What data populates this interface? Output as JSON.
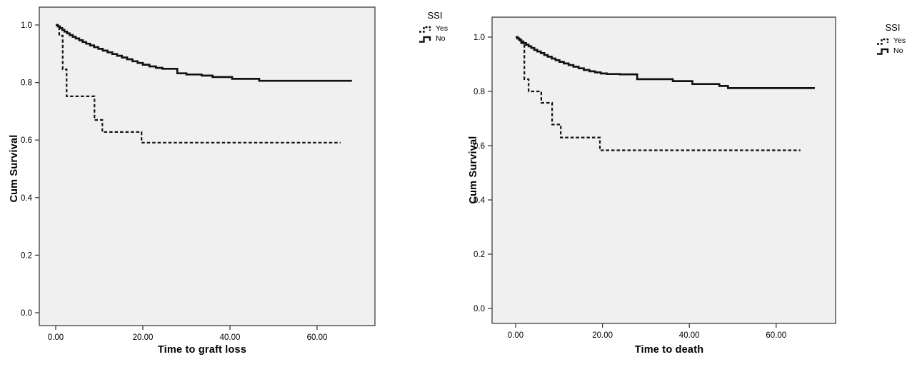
{
  "figure": {
    "background": "#ffffff"
  },
  "chart_data": [
    {
      "name": "time-to-graft-loss",
      "type": "line",
      "subtype": "kaplan-meier-step",
      "title": "",
      "xlabel": "Time to graft loss",
      "ylabel": "Cum Survival",
      "x_tick_labels": [
        "0.00",
        "20.00",
        "40.00",
        "60.00"
      ],
      "x_tick_values": [
        0,
        20,
        40,
        60
      ],
      "y_tick_labels": [
        "1.0",
        "0.8",
        "0.6",
        "0.4",
        "0.2",
        "0.0"
      ],
      "y_tick_values": [
        1.0,
        0.8,
        0.6,
        0.4,
        0.2,
        0.0
      ],
      "xlim": [
        -3.8,
        73.3
      ],
      "ylim": [
        -0.05,
        1.06
      ],
      "grid": false,
      "plot_background": "#f0f0f0",
      "frame_color": "#3d3d3d",
      "curve_color": "#121212",
      "legend": {
        "title": "SSI",
        "position": "outside-top-right",
        "items": [
          {
            "label": "Yes",
            "line_style": "dashed"
          },
          {
            "label": "No",
            "line_style": "solid"
          }
        ]
      },
      "series": [
        {
          "name": "Yes",
          "line_style": "dashed",
          "points": [
            [
              0,
              1.0
            ],
            [
              0.8,
              0.963
            ],
            [
              1.6,
              0.846
            ],
            [
              2.5,
              0.752
            ],
            [
              8.9,
              0.67
            ],
            [
              10.7,
              0.628
            ],
            [
              19.7,
              0.591
            ],
            [
              65.4,
              0.591
            ]
          ]
        },
        {
          "name": "No",
          "line_style": "solid",
          "points": [
            [
              0,
              1.0
            ],
            [
              0.5,
              0.995
            ],
            [
              1,
              0.989
            ],
            [
              1.5,
              0.983
            ],
            [
              2,
              0.977
            ],
            [
              2.6,
              0.971
            ],
            [
              3.2,
              0.965
            ],
            [
              3.9,
              0.959
            ],
            [
              4.6,
              0.953
            ],
            [
              5.4,
              0.947
            ],
            [
              6.2,
              0.941
            ],
            [
              7,
              0.935
            ],
            [
              7.9,
              0.929
            ],
            [
              8.8,
              0.923
            ],
            [
              9.8,
              0.917
            ],
            [
              10.8,
              0.911
            ],
            [
              11.9,
              0.905
            ],
            [
              13,
              0.899
            ],
            [
              14.1,
              0.893
            ],
            [
              15.2,
              0.887
            ],
            [
              16.4,
              0.881
            ],
            [
              17.6,
              0.874
            ],
            [
              18.8,
              0.868
            ],
            [
              20,
              0.862
            ],
            [
              21.5,
              0.856
            ],
            [
              23,
              0.851
            ],
            [
              24.5,
              0.848
            ],
            [
              27.9,
              0.832
            ],
            [
              30,
              0.828
            ],
            [
              33.5,
              0.824
            ],
            [
              36,
              0.819
            ],
            [
              40.5,
              0.813
            ],
            [
              46.7,
              0.806
            ],
            [
              68,
              0.806
            ]
          ]
        }
      ]
    },
    {
      "name": "time-to-death",
      "type": "line",
      "subtype": "kaplan-meier-step",
      "title": "",
      "xlabel": "Time to death",
      "ylabel": "Cum Survival",
      "x_tick_labels": [
        "0.00",
        "20.00",
        "40.00",
        "60.00"
      ],
      "x_tick_values": [
        0,
        20,
        40,
        60
      ],
      "y_tick_labels": [
        "1.0",
        "0.8",
        "0.6",
        "0.4",
        "0.2",
        "0.0"
      ],
      "y_tick_values": [
        1.0,
        0.8,
        0.6,
        0.4,
        0.2,
        0.0
      ],
      "xlim": [
        -5.3,
        73.7
      ],
      "ylim": [
        -0.07,
        1.07
      ],
      "grid": false,
      "plot_background": "#f0f0f0",
      "frame_color": "#3d3d3d",
      "curve_color": "#121212",
      "legend": {
        "title": "SSI",
        "position": "outside-top-right",
        "items": [
          {
            "label": "Yes",
            "line_style": "dashed"
          },
          {
            "label": "No",
            "line_style": "solid"
          }
        ]
      },
      "series": [
        {
          "name": "Yes",
          "line_style": "dashed",
          "points": [
            [
              0,
              1.0
            ],
            [
              1,
              0.978
            ],
            [
              2,
              0.845
            ],
            [
              3,
              0.8
            ],
            [
              5.9,
              0.758
            ],
            [
              8.4,
              0.678
            ],
            [
              10.4,
              0.63
            ],
            [
              19.4,
              0.583
            ],
            [
              65.6,
              0.583
            ]
          ]
        },
        {
          "name": "No",
          "line_style": "solid",
          "points": [
            [
              0,
              1.0
            ],
            [
              0.4,
              0.995
            ],
            [
              0.8,
              0.99
            ],
            [
              1.3,
              0.984
            ],
            [
              1.8,
              0.978
            ],
            [
              2.4,
              0.972
            ],
            [
              3,
              0.966
            ],
            [
              3.6,
              0.96
            ],
            [
              4.3,
              0.953
            ],
            [
              5,
              0.947
            ],
            [
              5.8,
              0.941
            ],
            [
              6.6,
              0.934
            ],
            [
              7.4,
              0.928
            ],
            [
              8.3,
              0.921
            ],
            [
              9.2,
              0.915
            ],
            [
              10.1,
              0.909
            ],
            [
              11.1,
              0.903
            ],
            [
              12.2,
              0.897
            ],
            [
              13.3,
              0.891
            ],
            [
              14.5,
              0.885
            ],
            [
              15.7,
              0.879
            ],
            [
              17,
              0.874
            ],
            [
              18.3,
              0.87
            ],
            [
              19.6,
              0.866
            ],
            [
              21,
              0.864
            ],
            [
              24,
              0.863
            ],
            [
              28,
              0.845
            ],
            [
              36.2,
              0.838
            ],
            [
              40.7,
              0.827
            ],
            [
              46.9,
              0.82
            ],
            [
              48.9,
              0.812
            ],
            [
              68.9,
              0.812
            ]
          ]
        }
      ]
    }
  ]
}
